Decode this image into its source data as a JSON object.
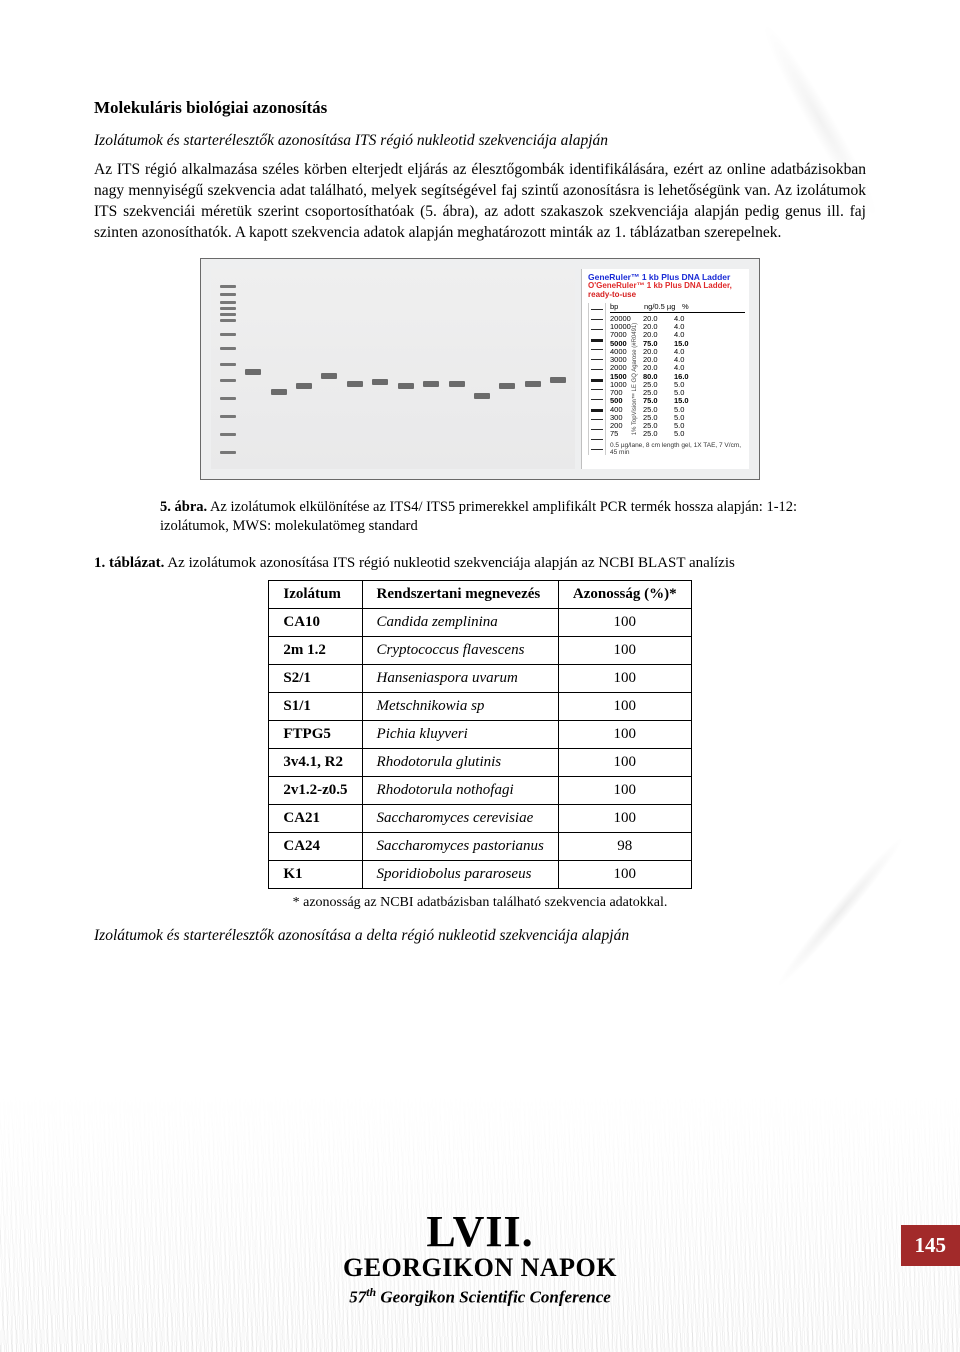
{
  "section_heading": "Molekuláris biológiai azonosítás",
  "subsection_heading": "Izolátumok és starterélesztők azonosítása ITS régió nukleotid szekvenciája alapján",
  "paragraph": "Az ITS régió alkalmazása széles körben elterjedt eljárás az élesztőgombák identifikálására, ezért az online adatbázisokban nagy mennyiségű szekvencia adat található, melyek segítségével faj szintű azonosításra is lehetőségünk van. Az izolátumok ITS szekvenciái méretük szerint csoportosíthatóak (5. ábra), az adott szakaszok szekvenciája alapján pedig genus ill. faj szinten azonosíthatók. A kapott szekvencia adatok alapján meghatározott minták az 1. táblázatban szerepelnek.",
  "figure": {
    "ladder_bands_pct": [
      8,
      12,
      16,
      19,
      22,
      25,
      32,
      39,
      47,
      55,
      64,
      73,
      82,
      91
    ],
    "sample_band_pct": [
      50,
      60,
      57,
      52,
      56,
      55,
      57,
      56,
      56,
      62,
      57,
      56,
      54
    ],
    "ladder_title1": "GeneRuler™ 1 kb Plus DNA Ladder",
    "ladder_title2": "O'GeneRuler™ 1 kb Plus DNA Ladder,",
    "ladder_ready": "ready-to-use",
    "ladder_header_cols": [
      "bp",
      "ng/0.5 µg",
      "%"
    ],
    "ladder_side_label": "1% TopVision™ LE GQ Agarose (#R0491)",
    "ladder_rows": [
      {
        "bp": "20000",
        "ng": "20.0",
        "pct": "4.0",
        "bold": false
      },
      {
        "bp": "10000",
        "ng": "20.0",
        "pct": "4.0",
        "bold": false
      },
      {
        "bp": "7000",
        "ng": "20.0",
        "pct": "4.0",
        "bold": false
      },
      {
        "bp": "5000",
        "ng": "75.0",
        "pct": "15.0",
        "bold": true
      },
      {
        "bp": "4000",
        "ng": "20.0",
        "pct": "4.0",
        "bold": false
      },
      {
        "bp": "3000",
        "ng": "20.0",
        "pct": "4.0",
        "bold": false
      },
      {
        "bp": "2000",
        "ng": "20.0",
        "pct": "4.0",
        "bold": false
      },
      {
        "bp": "1500",
        "ng": "80.0",
        "pct": "16.0",
        "bold": true
      },
      {
        "bp": "1000",
        "ng": "25.0",
        "pct": "5.0",
        "bold": false
      },
      {
        "bp": "700",
        "ng": "25.0",
        "pct": "5.0",
        "bold": false
      },
      {
        "bp": "500",
        "ng": "75.0",
        "pct": "15.0",
        "bold": true
      },
      {
        "bp": "400",
        "ng": "25.0",
        "pct": "5.0",
        "bold": false
      },
      {
        "bp": "300",
        "ng": "25.0",
        "pct": "5.0",
        "bold": false
      },
      {
        "bp": "200",
        "ng": "25.0",
        "pct": "5.0",
        "bold": false
      },
      {
        "bp": "75",
        "ng": "25.0",
        "pct": "5.0",
        "bold": false
      }
    ],
    "ladder_footer": "0.5 µg/lane, 8 cm length gel,\n1X TAE, 7 V/cm, 45 min"
  },
  "figure_caption_label": "5. ábra.",
  "figure_caption_text": " Az izolátumok elkülönítése az ITS4/ ITS5 primerekkel amplifikált PCR termék hossza alapján: 1-12: izolátumok, MWS: molekulatömeg standard",
  "table_caption_label": "1. táblázat.",
  "table_caption_text": " Az izolátumok azonosítása ITS régió nukleotid szekvenciája alapján az NCBI BLAST analízis",
  "table": {
    "columns": [
      "Izolátum",
      "Rendszertani megnevezés",
      "Azonosság (%)*"
    ],
    "rows": [
      {
        "isolate": "CA10",
        "taxon": "Candida zemplinina",
        "identity": "100"
      },
      {
        "isolate": "2m 1.2",
        "taxon": "Cryptococcus flavescens",
        "identity": "100"
      },
      {
        "isolate": "S2/1",
        "taxon": "Hanseniaspora uvarum",
        "identity": "100"
      },
      {
        "isolate": "S1/1",
        "taxon": "Metschnikowia sp",
        "identity": "100"
      },
      {
        "isolate": "FTPG5",
        "taxon": "Pichia kluyveri",
        "identity": "100"
      },
      {
        "isolate": "3v4.1, R2",
        "taxon": "Rhodotorula glutinis",
        "identity": "100"
      },
      {
        "isolate": "2v1.2-z0.5",
        "taxon": "Rhodotorula nothofagi",
        "identity": "100"
      },
      {
        "isolate": "CA21",
        "taxon": "Saccharomyces cerevisiae",
        "identity": "100"
      },
      {
        "isolate": "CA24",
        "taxon": "Saccharomyces pastorianus",
        "identity": "98"
      },
      {
        "isolate": "K1",
        "taxon": "Sporidiobolus pararoseus",
        "identity": "100"
      }
    ]
  },
  "footnote": "* azonosság az NCBI adatbázisban található szekvencia adatokkal.",
  "subsection2_heading": "Izolátumok és starterélesztők azonosítása a delta régió nukleotid szekvenciája alapján",
  "footer": {
    "roman": "LVII.",
    "title": "GEORGIKON NAPOK",
    "sub_pre": "57",
    "sub_sup": "th",
    "sub_post": " Georgikon Scientific Conference"
  },
  "page_number": "145",
  "colors": {
    "page_bg": "#ffffff",
    "body_text": "#000000",
    "page_num_bg": "#a22a2a",
    "page_num_fg": "#ffffff",
    "ladder_blue": "#1a2bd6",
    "ladder_red": "#d62020"
  }
}
